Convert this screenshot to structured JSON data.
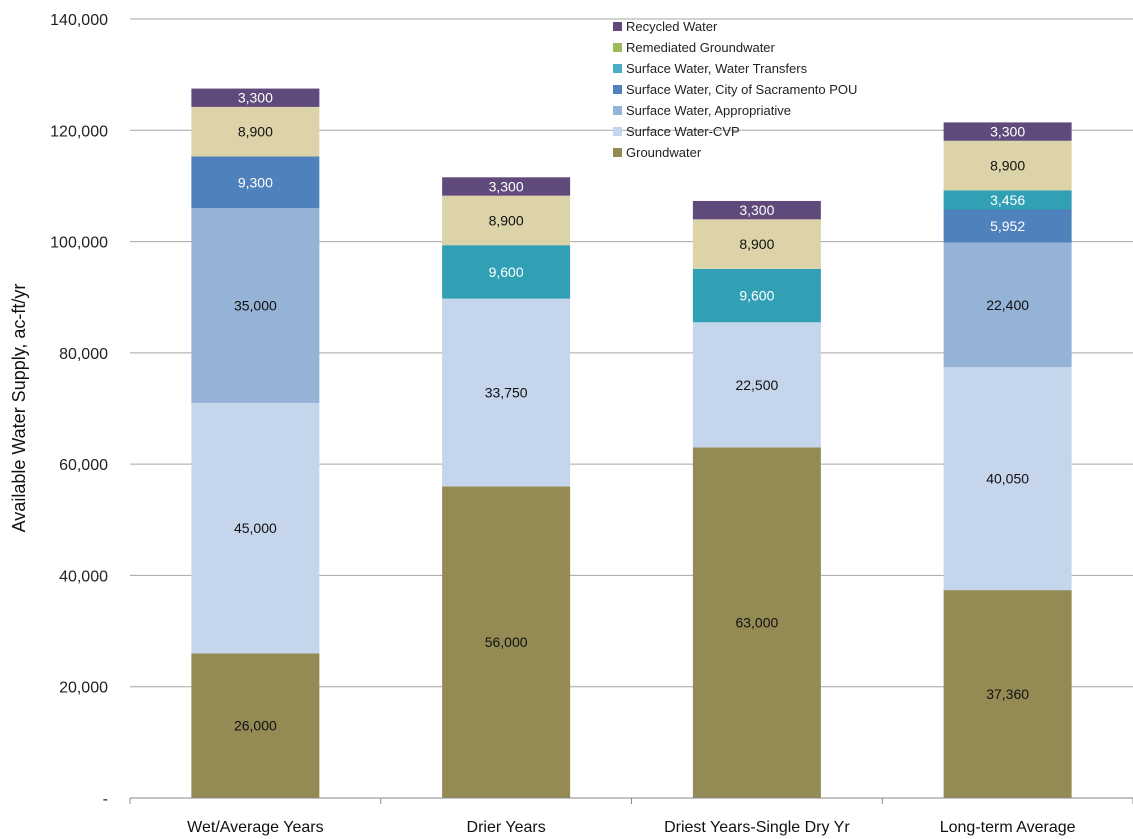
{
  "chart_data": {
    "type": "bar",
    "stacked": true,
    "ylabel": "Available Water Supply, ac-ft/yr",
    "xlabel": "",
    "ylim": [
      0,
      140000
    ],
    "yticks": [
      0,
      20000,
      40000,
      60000,
      80000,
      100000,
      120000,
      140000
    ],
    "ytick_labels": [
      "-",
      "20,000",
      "40,000",
      "60,000",
      "80,000",
      "100,000",
      "120,000",
      "140,000"
    ],
    "grid": "horizontal",
    "legend_position": "top-center",
    "categories": [
      "Wet/Average Years",
      "Drier Years",
      "Driest Years-Single Dry Yr",
      "Long-term Average"
    ],
    "series": [
      {
        "name": "Groundwater",
        "color": "#948a54",
        "label_color": "#111111",
        "values": [
          26000,
          56000,
          63000,
          37360
        ],
        "labels": [
          "26,000",
          "56,000",
          "63,000",
          "37,360"
        ]
      },
      {
        "name": "Surface Water-CVP",
        "color": "#c5d5ec",
        "label_color": "#111111",
        "values": [
          45000,
          33750,
          22500,
          40050
        ],
        "labels": [
          "45,000",
          "33,750",
          "22,500",
          "40,050"
        ]
      },
      {
        "name": "Surface Water, Appropriative",
        "color": "#95b3d7",
        "label_color": "#111111",
        "values": [
          35000,
          0,
          0,
          22400
        ],
        "labels": [
          "35,000",
          "",
          "",
          "22,400"
        ]
      },
      {
        "name": "Surface Water, City of Sacramento POU",
        "color": "#4f81bd",
        "label_color": "#ffffff",
        "values": [
          9300,
          0,
          0,
          5952
        ],
        "labels": [
          "9,300",
          "",
          "",
          "5,952"
        ]
      },
      {
        "name": "Surface Water, Water Transfers",
        "color": "#31a0b5",
        "label_color": "#ffffff",
        "values": [
          0,
          9600,
          9600,
          3456
        ],
        "labels": [
          "",
          "9,600",
          "9,600",
          "3,456"
        ]
      },
      {
        "name": "Remediated Groundwater",
        "color": "#ddd3a8",
        "label_color": "#111111",
        "values": [
          8900,
          8900,
          8900,
          8900
        ],
        "labels": [
          "8,900",
          "8,900",
          "8,900",
          "8,900"
        ]
      },
      {
        "name": "Recycled Water",
        "color": "#604a7b",
        "label_color": "#ffffff",
        "values": [
          3300,
          3300,
          3300,
          3300
        ],
        "labels": [
          "3,300",
          "3,300",
          "3,300",
          "3,300"
        ]
      }
    ],
    "legend_order": [
      "Recycled Water",
      "Remediated Groundwater",
      "Surface Water, Water Transfers",
      "Surface Water, City of Sacramento POU",
      "Surface Water, Appropriative",
      "Surface Water-CVP",
      "Groundwater"
    ],
    "legend_swatch_colors": {
      "Recycled Water": "#604a7b",
      "Remediated Groundwater": "#9bbb59",
      "Surface Water, Water Transfers": "#4bacc6",
      "Surface Water, City of Sacramento POU": "#4f81bd",
      "Surface Water, Appropriative": "#95b3d7",
      "Surface Water-CVP": "#c5d5ec",
      "Groundwater": "#948a54"
    }
  }
}
